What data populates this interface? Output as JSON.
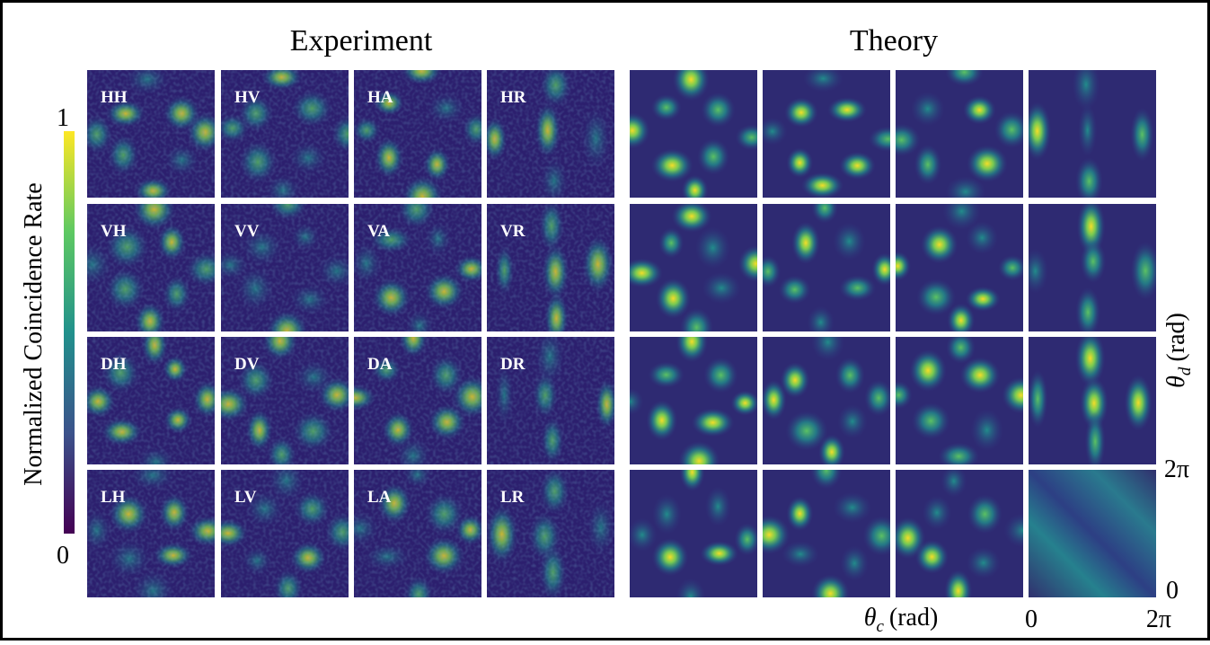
{
  "experiment": {
    "title": "Experiment",
    "panels": [
      "HH",
      "HV",
      "HA",
      "HR",
      "VH",
      "VV",
      "VA",
      "VR",
      "DH",
      "DV",
      "DA",
      "DR",
      "LH",
      "LV",
      "LA",
      "LR"
    ]
  },
  "theory": {
    "title": "Theory"
  },
  "colorbar": {
    "label": "Normalized Coincidence Rate",
    "max": "1",
    "min": "0"
  },
  "axes": {
    "y_label": {
      "symbol": "θ",
      "subscript": "d",
      "unit": "(rad)"
    },
    "y_top": "2π",
    "y_bottom": "0",
    "x_label": {
      "symbol": "θ",
      "subscript": "c",
      "unit": "(rad)"
    },
    "x_left": "0",
    "x_right": "2π"
  }
}
